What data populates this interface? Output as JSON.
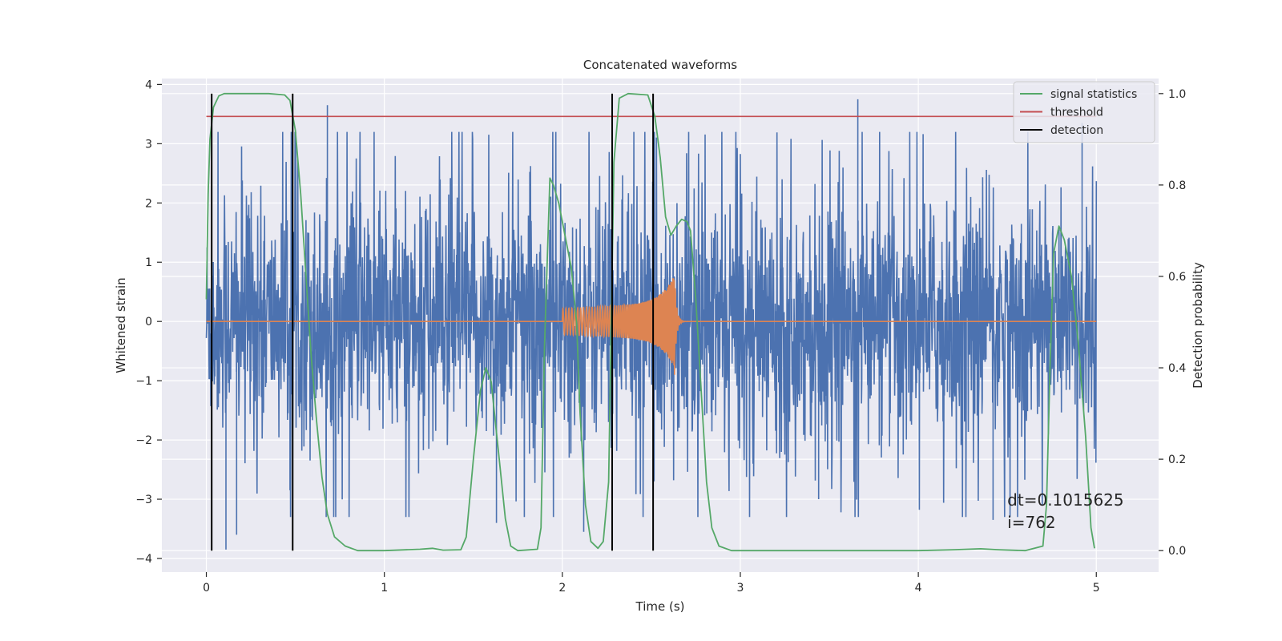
{
  "chart_data": {
    "type": "line",
    "title": "Concatenated waveforms",
    "xlabel": "Time (s)",
    "ylabel": "Whitened strain",
    "y2label": "Detection probability",
    "xlim": [
      -0.25,
      5.35
    ],
    "ylim": [
      -4.23,
      4.1
    ],
    "y2lim": [
      -0.047,
      1.033
    ],
    "xticks": [
      0,
      1,
      2,
      3,
      4,
      5
    ],
    "yticks": [
      -4,
      -3,
      -2,
      -1,
      0,
      1,
      2,
      3,
      4
    ],
    "y2ticks": [
      0.0,
      0.2,
      0.4,
      0.6,
      0.8,
      1.0
    ],
    "grid": true,
    "legend_position": "top-right",
    "series": [
      {
        "name": "signal statistics",
        "axis": "right",
        "color": "#55a868",
        "points": [
          [
            0.0,
            0.55
          ],
          [
            0.01,
            0.78
          ],
          [
            0.02,
            0.9
          ],
          [
            0.04,
            0.97
          ],
          [
            0.07,
            0.995
          ],
          [
            0.1,
            1.0
          ],
          [
            0.35,
            1.0
          ],
          [
            0.44,
            0.997
          ],
          [
            0.47,
            0.985
          ],
          [
            0.5,
            0.92
          ],
          [
            0.53,
            0.78
          ],
          [
            0.56,
            0.6
          ],
          [
            0.59,
            0.42
          ],
          [
            0.62,
            0.28
          ],
          [
            0.65,
            0.16
          ],
          [
            0.68,
            0.08
          ],
          [
            0.72,
            0.03
          ],
          [
            0.78,
            0.01
          ],
          [
            0.85,
            0.0
          ],
          [
            1.0,
            0.0
          ],
          [
            1.2,
            0.003
          ],
          [
            1.27,
            0.005
          ],
          [
            1.33,
            0.001
          ],
          [
            1.43,
            0.002
          ],
          [
            1.46,
            0.03
          ],
          [
            1.5,
            0.2
          ],
          [
            1.54,
            0.35
          ],
          [
            1.57,
            0.4
          ],
          [
            1.6,
            0.37
          ],
          [
            1.64,
            0.22
          ],
          [
            1.68,
            0.07
          ],
          [
            1.71,
            0.01
          ],
          [
            1.75,
            0.0
          ],
          [
            1.86,
            0.003
          ],
          [
            1.88,
            0.05
          ],
          [
            1.9,
            0.45
          ],
          [
            1.93,
            0.815
          ],
          [
            1.95,
            0.8
          ],
          [
            1.98,
            0.76
          ],
          [
            2.01,
            0.7
          ],
          [
            2.05,
            0.62
          ],
          [
            2.08,
            0.5
          ],
          [
            2.1,
            0.3
          ],
          [
            2.13,
            0.1
          ],
          [
            2.16,
            0.02
          ],
          [
            2.2,
            0.005
          ],
          [
            2.23,
            0.02
          ],
          [
            2.26,
            0.15
          ],
          [
            2.29,
            0.85
          ],
          [
            2.32,
            0.99
          ],
          [
            2.37,
            1.0
          ],
          [
            2.48,
            0.997
          ],
          [
            2.52,
            0.95
          ],
          [
            2.55,
            0.86
          ],
          [
            2.58,
            0.73
          ],
          [
            2.61,
            0.69
          ],
          [
            2.64,
            0.71
          ],
          [
            2.67,
            0.725
          ],
          [
            2.7,
            0.72
          ],
          [
            2.72,
            0.7
          ],
          [
            2.75,
            0.55
          ],
          [
            2.78,
            0.35
          ],
          [
            2.81,
            0.15
          ],
          [
            2.84,
            0.05
          ],
          [
            2.88,
            0.01
          ],
          [
            2.95,
            0.0
          ],
          [
            3.5,
            0.0
          ],
          [
            4.0,
            0.0
          ],
          [
            4.2,
            0.002
          ],
          [
            4.35,
            0.004
          ],
          [
            4.45,
            0.002
          ],
          [
            4.6,
            0.0
          ],
          [
            4.7,
            0.01
          ],
          [
            4.72,
            0.1
          ],
          [
            4.74,
            0.4
          ],
          [
            4.76,
            0.65
          ],
          [
            4.79,
            0.71
          ],
          [
            4.82,
            0.68
          ],
          [
            4.86,
            0.6
          ],
          [
            4.9,
            0.45
          ],
          [
            4.94,
            0.25
          ],
          [
            4.97,
            0.05
          ],
          [
            4.99,
            0.005
          ]
        ]
      },
      {
        "name": "threshold",
        "axis": "right",
        "color": "#c44e52",
        "points": [
          [
            0.0,
            0.95
          ],
          [
            5.0,
            0.95
          ]
        ]
      },
      {
        "name": "detection",
        "axis": "right",
        "color": "#000000",
        "vlines": [
          0.03,
          0.485,
          2.28,
          2.51
        ],
        "range": [
          0.0,
          1.0
        ]
      },
      {
        "name": "",
        "axis": "left",
        "color": "#4c72b0",
        "kind": "noise",
        "x_range": [
          0.0,
          5.0
        ],
        "amplitude": 1.0,
        "extremes": [
          [
            0.11,
            -3.85
          ],
          [
            0.17,
            -3.6
          ],
          [
            0.68,
            3.65
          ],
          [
            3.66,
            3.75
          ],
          [
            4.92,
            3.35
          ],
          [
            2.12,
            -3.55
          ],
          [
            3.44,
            -3.0
          ],
          [
            4.42,
            -3.35
          ],
          [
            0.47,
            -2.85
          ],
          [
            1.63,
            -3.4
          ]
        ]
      },
      {
        "name": "",
        "axis": "left",
        "color": "#dd8452",
        "kind": "chirp",
        "x_range": [
          2.0,
          2.63
        ],
        "peak": 0.78
      }
    ],
    "annotation": {
      "lines": [
        "dt=0.1015625",
        " i=762"
      ],
      "x": 4.5,
      "y": -3.3
    }
  }
}
